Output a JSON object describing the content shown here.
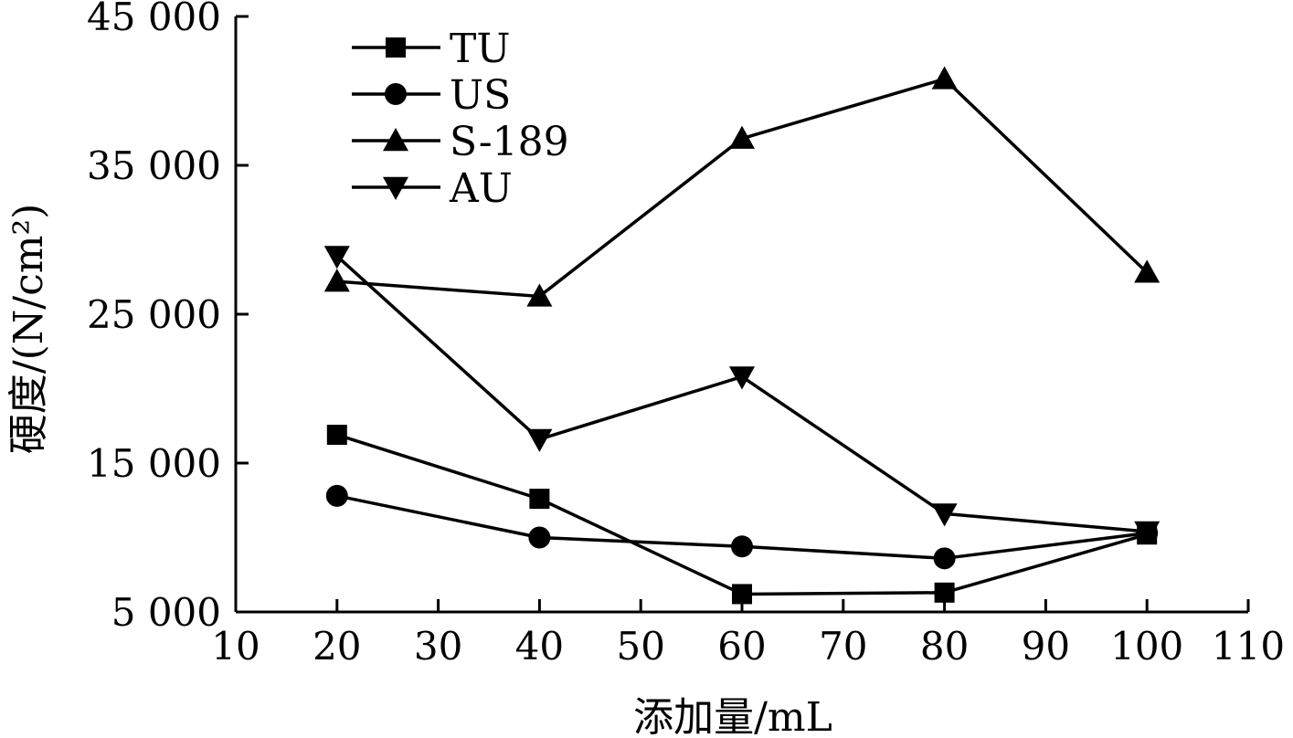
{
  "chart_data": {
    "type": "line",
    "title": "",
    "xlabel": "添加量/mL",
    "ylabel": "硬度/(N/cm²)",
    "xlim": [
      10,
      110
    ],
    "ylim": [
      5000,
      45000
    ],
    "x_ticks": [
      10,
      20,
      30,
      40,
      50,
      60,
      70,
      80,
      90,
      100,
      110
    ],
    "x_tick_labels": [
      "10",
      "20",
      "30",
      "40",
      "50",
      "60",
      "70",
      "80",
      "90",
      "100",
      "110"
    ],
    "y_ticks": [
      5000,
      15000,
      25000,
      35000,
      45000
    ],
    "y_tick_labels": [
      "5 000",
      "15 000",
      "25 000",
      "35 000",
      "45 000"
    ],
    "grid": false,
    "legend_position": "top-left",
    "x": [
      20,
      40,
      60,
      80,
      100
    ],
    "series": [
      {
        "name": "TU",
        "marker": "square",
        "values": [
          16900,
          12600,
          6200,
          6300,
          10200
        ]
      },
      {
        "name": "US",
        "marker": "circle",
        "values": [
          12800,
          10000,
          9400,
          8600,
          10300
        ]
      },
      {
        "name": "S-189",
        "marker": "triangle-up",
        "values": [
          27200,
          26200,
          36800,
          40800,
          27800
        ]
      },
      {
        "name": "AU",
        "marker": "triangle-down",
        "values": [
          28900,
          16600,
          20800,
          11600,
          10400
        ]
      }
    ]
  }
}
